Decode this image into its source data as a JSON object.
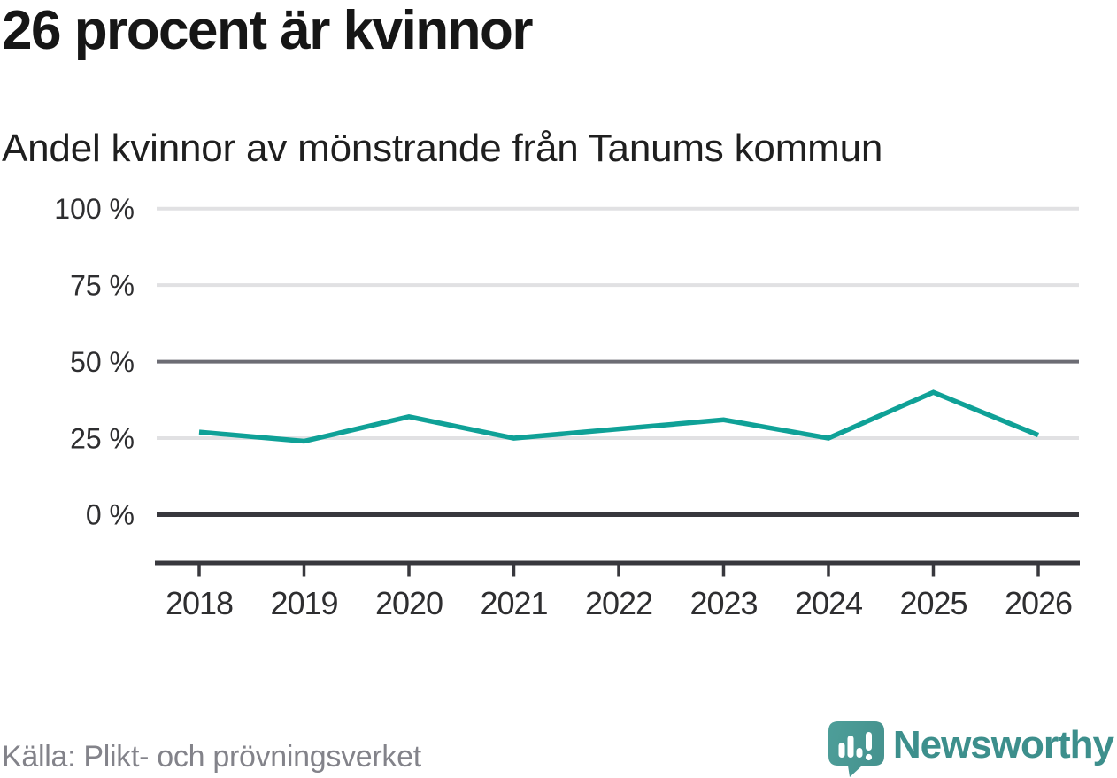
{
  "header": {
    "title": "26 procent är kvinnor",
    "subtitle": "Andel kvinnor av mönstrande från Tanums kommun"
  },
  "footer": {
    "source": "Källa: Plikt- och prövningsverket",
    "brand": "Newsworthy"
  },
  "colors": {
    "line": "#0fa197",
    "grid_light": "#e1e1e3",
    "grid_mid": "#6c6c74",
    "axis_dark": "#38383d",
    "tick_text": "#2e2e30",
    "title_text": "#161616",
    "source_text": "#83838a",
    "brand_teal": "#3d8f8c",
    "icon_teal": "#4b9b96"
  },
  "chart_data": {
    "type": "line",
    "title": "26 procent är kvinnor",
    "subtitle": "Andel kvinnor av mönstrande från Tanums kommun",
    "source": "Källa: Plikt- och prövningsverket",
    "x": [
      2018,
      2019,
      2020,
      2021,
      2022,
      2023,
      2024,
      2025,
      2026
    ],
    "xtick_labels": [
      "2018",
      "2019",
      "2020",
      "2021",
      "2022",
      "2023",
      "2024",
      "2025",
      "2026"
    ],
    "series": [
      {
        "name": "Andel kvinnor av mönstrande",
        "values": [
          27,
          24,
          32,
          25,
          28,
          31,
          25,
          40,
          26
        ],
        "color": "#0fa197"
      }
    ],
    "unit": "%",
    "ylim": [
      0,
      100
    ],
    "yticks": [
      0,
      25,
      50,
      75,
      100
    ],
    "ytick_labels": [
      "0 %",
      "25 %",
      "50 %",
      "75 %",
      "100 %"
    ],
    "baseline_ytick": 0,
    "emphasized_ytick": 50,
    "grid": "horizontal",
    "legend": "none",
    "xlabel": "",
    "ylabel": ""
  }
}
